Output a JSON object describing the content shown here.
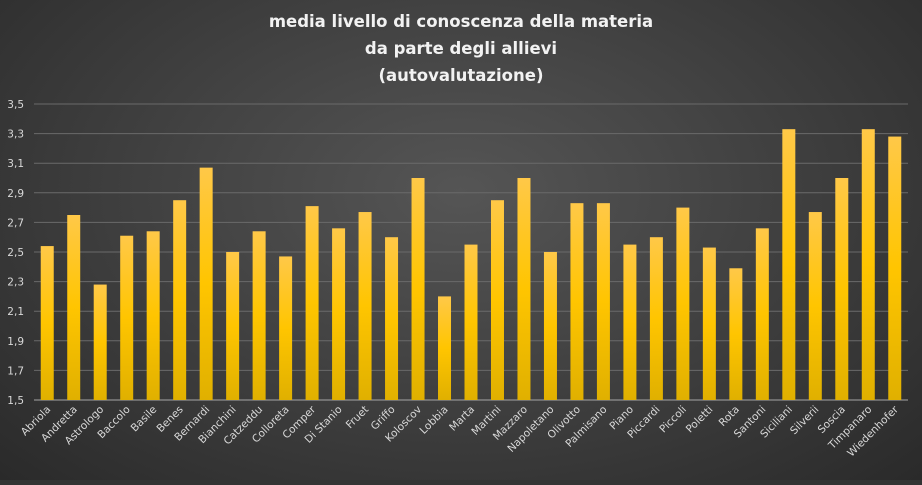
{
  "chart_data": {
    "type": "bar",
    "title_lines": [
      "media livello di conoscenza della materia",
      "da parte degli allievi",
      "(autovalutazione)"
    ],
    "xlabel": "",
    "ylabel": "",
    "ylim": [
      1.5,
      3.5
    ],
    "yticks": [
      "1,5",
      "1,7",
      "1,9",
      "2,1",
      "2,3",
      "2,5",
      "2,7",
      "2,9",
      "3,1",
      "3,3",
      "3,5"
    ],
    "grid": true,
    "legend": "none",
    "bar_color": "#ffc000",
    "categories": [
      "Abriola",
      "Andretta",
      "Astrologo",
      "Baccolo",
      "Basile",
      "Benes",
      "Bernardi",
      "Bianchini",
      "Catzeddu",
      "Colloreta",
      "Comper",
      "Di Stanio",
      "Fruet",
      "Griffo",
      "Koloscov",
      "Lobbia",
      "Marta",
      "Martini",
      "Mazzaro",
      "Napoletano",
      "Olivotto",
      "Palmisano",
      "Piano",
      "Piccardi",
      "Piccoli",
      "Poletti",
      "Rota",
      "Santoni",
      "Siciliani",
      "Silverii",
      "Soscia",
      "Timpanaro",
      "Wiedenhofer"
    ],
    "values": [
      2.54,
      2.75,
      2.28,
      2.61,
      2.64,
      2.85,
      3.07,
      2.5,
      2.64,
      2.47,
      2.81,
      2.66,
      2.77,
      2.6,
      3.0,
      2.2,
      2.55,
      2.85,
      3.0,
      2.5,
      2.83,
      2.83,
      2.55,
      2.6,
      2.8,
      2.53,
      2.39,
      2.66,
      3.33,
      2.77,
      3.0,
      3.33,
      3.28
    ]
  }
}
